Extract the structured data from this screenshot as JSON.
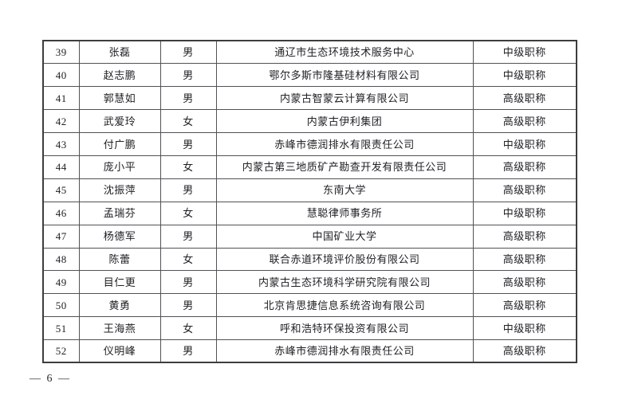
{
  "page": {
    "footer_page_number": "— 6 —"
  },
  "table": {
    "rows": [
      {
        "no": "39",
        "name": "张磊",
        "gender": "男",
        "organization": "通辽市生态环境技术服务中心",
        "title": "中级职称"
      },
      {
        "no": "40",
        "name": "赵志鹏",
        "gender": "男",
        "organization": "鄂尔多斯市隆基硅材料有限公司",
        "title": "中级职称"
      },
      {
        "no": "41",
        "name": "郭慧如",
        "gender": "男",
        "organization": "内蒙古智蒙云计算有限公司",
        "title": "高级职称"
      },
      {
        "no": "42",
        "name": "武爱玲",
        "gender": "女",
        "organization": "内蒙古伊利集团",
        "title": "高级职称"
      },
      {
        "no": "43",
        "name": "付广鹏",
        "gender": "男",
        "organization": "赤峰市德润排水有限责任公司",
        "title": "中级职称"
      },
      {
        "no": "44",
        "name": "庞小平",
        "gender": "女",
        "organization": "内蒙古第三地质矿产勘查开发有限责任公司",
        "title": "高级职称"
      },
      {
        "no": "45",
        "name": "沈振萍",
        "gender": "男",
        "organization": "东南大学",
        "title": "高级职称"
      },
      {
        "no": "46",
        "name": "孟瑞芬",
        "gender": "女",
        "organization": "慧聪律师事务所",
        "title": "中级职称"
      },
      {
        "no": "47",
        "name": "杨德军",
        "gender": "男",
        "organization": "中国矿业大学",
        "title": "高级职称"
      },
      {
        "no": "48",
        "name": "陈蕾",
        "gender": "女",
        "organization": "联合赤道环境评价股份有限公司",
        "title": "高级职称"
      },
      {
        "no": "49",
        "name": "目仁更",
        "gender": "男",
        "organization": "内蒙古生态环境科学研究院有限公司",
        "title": "高级职称"
      },
      {
        "no": "50",
        "name": "黄勇",
        "gender": "男",
        "organization": "北京肯思捷信息系统咨询有限公司",
        "title": "高级职称"
      },
      {
        "no": "51",
        "name": "王海燕",
        "gender": "女",
        "organization": "呼和浩特环保投资有限公司",
        "title": "中级职称"
      },
      {
        "no": "52",
        "name": "仪明峰",
        "gender": "男",
        "organization": "赤峰市德润排水有限责任公司",
        "title": "高级职称"
      }
    ]
  }
}
